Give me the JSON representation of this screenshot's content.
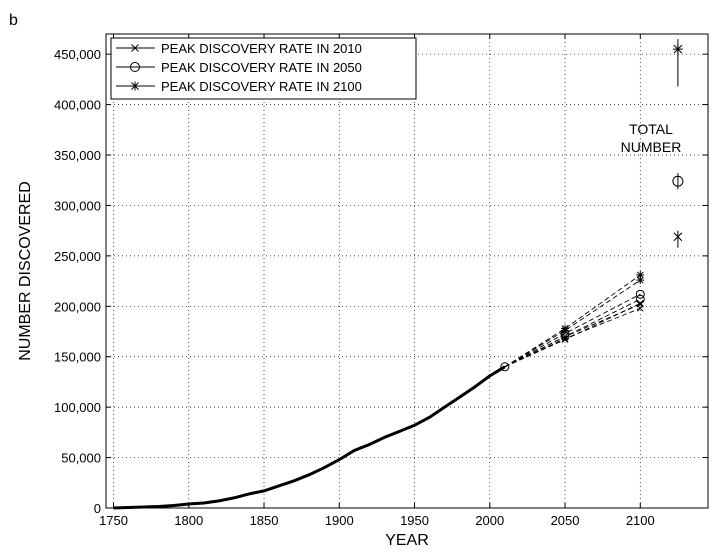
{
  "chart_data": {
    "type": "line",
    "panel_label": "b",
    "xlabel": "YEAR",
    "ylabel": "NUMBER DISCOVERED",
    "xlim": [
      1745,
      2145
    ],
    "ylim": [
      0,
      470000
    ],
    "xticks": [
      1750,
      1800,
      1850,
      1900,
      1950,
      2000,
      2050,
      2100
    ],
    "xtick_labels": [
      "1750",
      "1800",
      "1850",
      "1900",
      "1950",
      "2000",
      "2050",
      "2100"
    ],
    "yticks": [
      0,
      50000,
      100000,
      150000,
      200000,
      250000,
      300000,
      350000,
      400000,
      450000
    ],
    "ytick_labels": [
      "0",
      "50,000",
      "100,000",
      "150,000",
      "200,000",
      "250,000",
      "300,000",
      "350,000",
      "400,000",
      "450,000"
    ],
    "grid": true,
    "legend_position": "top-left",
    "legend": [
      {
        "label": "PEAK DISCOVERY RATE IN 2010",
        "marker": "x"
      },
      {
        "label": "PEAK DISCOVERY RATE IN 2050",
        "marker": "o"
      },
      {
        "label": "PEAK DISCOVERY RATE IN 2100",
        "marker": "*"
      }
    ],
    "historical": {
      "x": [
        1750,
        1760,
        1770,
        1780,
        1790,
        1800,
        1810,
        1820,
        1830,
        1840,
        1850,
        1860,
        1870,
        1880,
        1890,
        1900,
        1910,
        1920,
        1930,
        1940,
        1950,
        1960,
        1970,
        1980,
        1990,
        2000,
        2010
      ],
      "y": [
        0,
        500,
        1000,
        1500,
        2500,
        4000,
        5000,
        7000,
        10000,
        14000,
        17000,
        22000,
        27000,
        33000,
        40000,
        48000,
        57000,
        63000,
        70000,
        76000,
        82000,
        90000,
        100000,
        110000,
        120000,
        131000,
        140000
      ]
    },
    "projections": [
      {
        "marker": "x",
        "x": [
          2010,
          2050,
          2100
        ],
        "y": [
          140000,
          168000,
          198000
        ]
      },
      {
        "marker": "x",
        "x": [
          2010,
          2050,
          2100
        ],
        "y": [
          140000,
          170000,
          202000
        ]
      },
      {
        "marker": "o",
        "x": [
          2010,
          2050,
          2100
        ],
        "y": [
          140000,
          170000,
          207000
        ]
      },
      {
        "marker": "o",
        "x": [
          2010,
          2050,
          2100
        ],
        "y": [
          140000,
          173000,
          212000
        ]
      },
      {
        "marker": "*",
        "x": [
          2010,
          2050,
          2100
        ],
        "y": [
          140000,
          176000,
          226000
        ]
      },
      {
        "marker": "*",
        "x": [
          2010,
          2050,
          2100
        ],
        "y": [
          140000,
          178000,
          231000
        ]
      },
      {
        "marker": "x",
        "x": [
          2010,
          2050,
          2100
        ],
        "y": [
          140000,
          167000,
          203000
        ]
      }
    ],
    "annotation": {
      "lines": [
        "TOTAL",
        "NUMBER"
      ]
    },
    "totals": [
      {
        "marker": "*",
        "x": 2125,
        "y": 455000,
        "low": 418000,
        "high": 465000
      },
      {
        "marker": "o",
        "x": 2125,
        "y": 324000,
        "low": 316000,
        "high": 332000
      },
      {
        "marker": "x",
        "x": 2125,
        "y": 269000,
        "low": 258000,
        "high": 275000
      }
    ]
  }
}
